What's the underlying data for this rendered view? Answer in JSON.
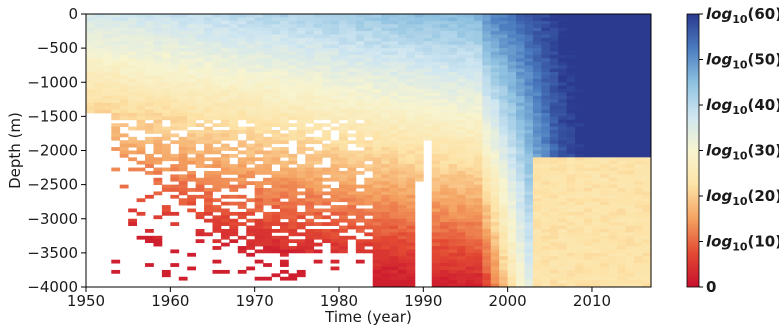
{
  "chart_data": {
    "type": "heatmap",
    "title": "",
    "xlabel": "Time (year)",
    "ylabel": "Depth (m)",
    "xlim": [
      1950,
      2017
    ],
    "ylim": [
      -4000,
      0
    ],
    "x_ticks": [
      1950,
      1960,
      1970,
      1980,
      1990,
      2000,
      2010
    ],
    "y_ticks": [
      0,
      -500,
      -1000,
      -1500,
      -2000,
      -2500,
      -3000,
      -3500,
      -4000
    ],
    "colormap": "RdYlBu",
    "colorbar": {
      "range": [
        0,
        60
      ],
      "ticks": [
        {
          "value": 0,
          "base": "0",
          "sub": "",
          "arg": ""
        },
        {
          "value": 10,
          "base": "log",
          "sub": "10",
          "arg": "(10)"
        },
        {
          "value": 20,
          "base": "log",
          "sub": "10",
          "arg": "(20)"
        },
        {
          "value": 30,
          "base": "log",
          "sub": "10",
          "arg": "(30)"
        },
        {
          "value": 40,
          "base": "log",
          "sub": "10",
          "arg": "(40)"
        },
        {
          "value": 50,
          "base": "log",
          "sub": "10",
          "arg": "(50)"
        },
        {
          "value": 60,
          "base": "log",
          "sub": "10",
          "arg": "(60)"
        }
      ]
    },
    "colors": {
      "stops": [
        "#c8102e",
        "#e34a33",
        "#f4a261",
        "#fde3a7",
        "#f7f4d0",
        "#cfe6f1",
        "#8ec1e0",
        "#4a7bbf",
        "#2b3a8f"
      ]
    }
  }
}
